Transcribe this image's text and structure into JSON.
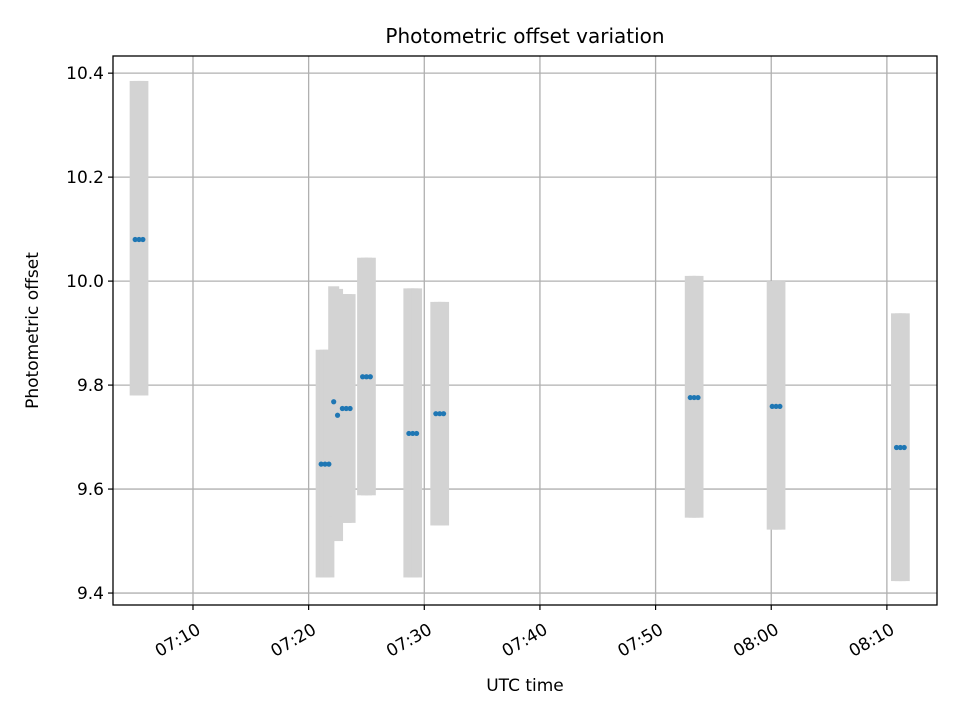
{
  "chart_data": {
    "type": "scatter",
    "title": "Photometric offset variation",
    "xlabel": "UTC time",
    "ylabel": "Photometric offset",
    "x_tick_labels": [
      "07:10",
      "07:20",
      "07:30",
      "07:40",
      "07:50",
      "08:00",
      "08:10"
    ],
    "y_tick_labels": [
      "9.4",
      "9.6",
      "9.8",
      "10.0",
      "10.2",
      "10.4"
    ],
    "y_ticks": [
      9.4,
      9.6,
      9.8,
      10.0,
      10.2,
      10.4
    ],
    "x_ticks": [
      "07:10",
      "07:20",
      "07:30",
      "07:40",
      "07:50",
      "08:00",
      "08:10"
    ],
    "xlim": [
      "07:03:05",
      "08:14:20"
    ],
    "ylim": [
      9.377,
      10.433
    ],
    "grid": true,
    "colors": {
      "point": "#1f77b4",
      "error_band": "#d3d3d3",
      "grid": "#b0b0b0"
    },
    "points": [
      {
        "x": "07:05:00",
        "y": 10.08,
        "ymin": 9.78,
        "ymax": 10.385
      },
      {
        "x": "07:05:20",
        "y": 10.08,
        "ymin": 9.78,
        "ymax": 10.385
      },
      {
        "x": "07:05:40",
        "y": 10.08,
        "ymin": 9.78,
        "ymax": 10.385
      },
      {
        "x": "07:21:05",
        "y": 9.648,
        "ymin": 9.43,
        "ymax": 9.868
      },
      {
        "x": "07:21:25",
        "y": 9.648,
        "ymin": 9.43,
        "ymax": 9.868
      },
      {
        "x": "07:21:45",
        "y": 9.648,
        "ymin": 9.43,
        "ymax": 9.868
      },
      {
        "x": "07:22:10",
        "y": 9.768,
        "ymin": 9.548,
        "ymax": 9.99
      },
      {
        "x": "07:22:30",
        "y": 9.742,
        "ymin": 9.5,
        "ymax": 9.985
      },
      {
        "x": "07:22:55",
        "y": 9.755,
        "ymin": 9.535,
        "ymax": 9.975
      },
      {
        "x": "07:23:15",
        "y": 9.755,
        "ymin": 9.535,
        "ymax": 9.975
      },
      {
        "x": "07:23:35",
        "y": 9.755,
        "ymin": 9.535,
        "ymax": 9.975
      },
      {
        "x": "07:24:40",
        "y": 9.816,
        "ymin": 9.588,
        "ymax": 10.045
      },
      {
        "x": "07:25:00",
        "y": 9.816,
        "ymin": 9.588,
        "ymax": 10.045
      },
      {
        "x": "07:25:20",
        "y": 9.816,
        "ymin": 9.588,
        "ymax": 10.045
      },
      {
        "x": "07:28:40",
        "y": 9.707,
        "ymin": 9.43,
        "ymax": 9.986
      },
      {
        "x": "07:29:00",
        "y": 9.707,
        "ymin": 9.43,
        "ymax": 9.986
      },
      {
        "x": "07:29:20",
        "y": 9.707,
        "ymin": 9.43,
        "ymax": 9.986
      },
      {
        "x": "07:31:00",
        "y": 9.745,
        "ymin": 9.53,
        "ymax": 9.96
      },
      {
        "x": "07:31:20",
        "y": 9.745,
        "ymin": 9.53,
        "ymax": 9.96
      },
      {
        "x": "07:31:40",
        "y": 9.745,
        "ymin": 9.53,
        "ymax": 9.96
      },
      {
        "x": "07:53:00",
        "y": 9.776,
        "ymin": 9.545,
        "ymax": 10.01
      },
      {
        "x": "07:53:20",
        "y": 9.776,
        "ymin": 9.545,
        "ymax": 10.01
      },
      {
        "x": "07:53:40",
        "y": 9.776,
        "ymin": 9.545,
        "ymax": 10.01
      },
      {
        "x": "08:00:05",
        "y": 9.759,
        "ymin": 9.522,
        "ymax": 10.0
      },
      {
        "x": "08:00:25",
        "y": 9.759,
        "ymin": 9.522,
        "ymax": 10.0
      },
      {
        "x": "08:00:45",
        "y": 9.759,
        "ymin": 9.522,
        "ymax": 10.0
      },
      {
        "x": "08:10:50",
        "y": 9.68,
        "ymin": 9.423,
        "ymax": 9.938
      },
      {
        "x": "08:11:10",
        "y": 9.68,
        "ymin": 9.423,
        "ymax": 9.938
      },
      {
        "x": "08:11:30",
        "y": 9.68,
        "ymin": 9.423,
        "ymax": 9.938
      }
    ]
  }
}
